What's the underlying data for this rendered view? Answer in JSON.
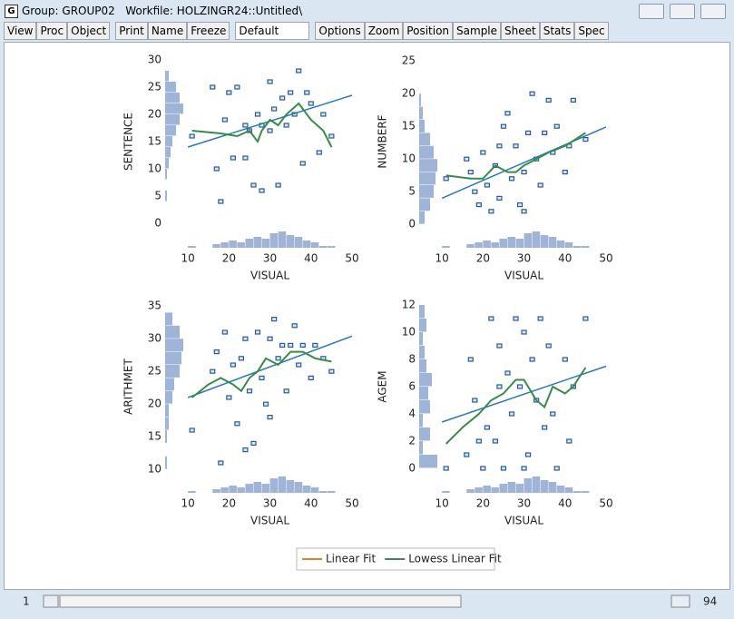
{
  "window": {
    "icon": "G",
    "title": "Group: GROUP02   Workfile: HOLZINGR24::Untitled\\"
  },
  "toolbar": {
    "group1": [
      "View",
      "Proc",
      "Object"
    ],
    "group2": [
      "Print",
      "Name",
      "Freeze"
    ],
    "dropdown": "Default",
    "group3": [
      "Options",
      "Zoom",
      "Position",
      "Sample",
      "Sheet",
      "Stats",
      "Spec"
    ]
  },
  "chart_data": [
    {
      "type": "scatter",
      "x_label": "VISUAL",
      "y_label": "SENTENCE",
      "xlim": [
        4,
        50
      ],
      "ylim": [
        -5,
        31
      ],
      "xticks": [
        10,
        20,
        30,
        40,
        50
      ],
      "yticks": [
        0,
        5,
        10,
        15,
        20,
        25,
        30
      ],
      "points": {
        "color": "#2a5a9a",
        "x": [
          11,
          16,
          17,
          18,
          19,
          20,
          21,
          22,
          24,
          25,
          26,
          27,
          28,
          28,
          30,
          31,
          32,
          33,
          34,
          35,
          36,
          37,
          38,
          39,
          40,
          42,
          43,
          45,
          30,
          24
        ],
        "values": [
          16,
          25,
          10,
          4,
          19,
          24,
          12,
          25,
          12,
          17,
          7,
          20,
          6,
          18,
          26,
          21,
          7,
          23,
          18,
          24,
          20,
          28,
          11,
          24,
          22,
          13,
          20,
          16,
          17,
          18
        ]
      },
      "linear_fit": {
        "color": "#2a78b8",
        "x": [
          10,
          50
        ],
        "values": [
          14,
          23.5
        ]
      },
      "lowess": {
        "color": "#3a8a4a",
        "x": [
          11,
          18,
          22,
          25,
          27,
          28,
          30,
          32,
          34,
          37,
          40,
          43,
          45
        ],
        "values": [
          17,
          16.5,
          16,
          17,
          15,
          17,
          19,
          18,
          20,
          22,
          19,
          17,
          14
        ]
      },
      "x_hist": {
        "color": "#9fb4d6",
        "bins": [
          10,
          12,
          14,
          16,
          18,
          20,
          22,
          24,
          26,
          28,
          30,
          32,
          34,
          36,
          38,
          40,
          42,
          44,
          46
        ],
        "counts": [
          1,
          0,
          0,
          2,
          3,
          4,
          3,
          5,
          6,
          5,
          8,
          9,
          7,
          6,
          4,
          3,
          1,
          1
        ]
      },
      "y_hist": {
        "color": "#9fb4d6",
        "bins": [
          4,
          6,
          8,
          10,
          12,
          14,
          16,
          18,
          20,
          22,
          24,
          26,
          28
        ],
        "counts": [
          1,
          0,
          1,
          2,
          3,
          4,
          6,
          8,
          10,
          8,
          6,
          2
        ]
      }
    },
    {
      "type": "scatter",
      "x_label": "VISUAL",
      "y_label": "NUMBERF",
      "xlim": [
        4,
        50
      ],
      "ylim": [
        -4,
        26
      ],
      "xticks": [
        10,
        20,
        30,
        40,
        50
      ],
      "yticks": [
        0,
        5,
        10,
        15,
        20,
        25
      ],
      "points": {
        "color": "#2a5a9a",
        "x": [
          11,
          16,
          17,
          18,
          19,
          20,
          21,
          22,
          23,
          24,
          25,
          26,
          27,
          28,
          29,
          30,
          31,
          32,
          33,
          34,
          35,
          36,
          37,
          38,
          40,
          41,
          42,
          45,
          30,
          24
        ],
        "values": [
          7,
          10,
          8,
          5,
          3,
          11,
          6,
          2,
          9,
          4,
          15,
          17,
          7,
          12,
          3,
          8,
          14,
          20,
          10,
          6,
          14,
          19,
          11,
          15,
          8,
          12,
          19,
          13,
          2,
          12
        ]
      },
      "linear_fit": {
        "color": "#2a78b8",
        "x": [
          10,
          50
        ],
        "values": [
          4,
          14.9
        ]
      },
      "lowess": {
        "color": "#3a8a4a",
        "x": [
          11,
          17,
          20,
          23,
          26,
          28,
          30,
          33,
          36,
          40,
          45
        ],
        "values": [
          7.5,
          7,
          7,
          9,
          8,
          8,
          9,
          10,
          11,
          12,
          14
        ]
      },
      "x_hist": {
        "color": "#9fb4d6",
        "bins": [
          10,
          12,
          14,
          16,
          18,
          20,
          22,
          24,
          26,
          28,
          30,
          32,
          34,
          36,
          38,
          40,
          42,
          44,
          46
        ],
        "counts": [
          1,
          0,
          0,
          2,
          3,
          4,
          3,
          5,
          6,
          5,
          8,
          9,
          7,
          6,
          4,
          3,
          1,
          1
        ]
      },
      "y_hist": {
        "color": "#9fb4d6",
        "bins": [
          0,
          2,
          4,
          6,
          8,
          10,
          12,
          14,
          16,
          18,
          20
        ],
        "counts": [
          3,
          6,
          8,
          9,
          10,
          8,
          6,
          3,
          2,
          1
        ]
      }
    },
    {
      "type": "scatter",
      "x_label": "VISUAL",
      "y_label": "ARITHMET",
      "xlim": [
        4,
        50
      ],
      "ylim": [
        6,
        36
      ],
      "xticks": [
        10,
        20,
        30,
        40,
        50
      ],
      "yticks": [
        10,
        15,
        20,
        25,
        30,
        35
      ],
      "points": {
        "color": "#2a5a9a",
        "x": [
          11,
          16,
          17,
          18,
          19,
          20,
          21,
          22,
          23,
          24,
          25,
          26,
          27,
          28,
          29,
          30,
          31,
          32,
          33,
          34,
          35,
          36,
          37,
          38,
          40,
          41,
          43,
          45,
          30,
          24
        ],
        "values": [
          16,
          25,
          28,
          11,
          31,
          21,
          26,
          17,
          27,
          13,
          22,
          14,
          31,
          24,
          20,
          30,
          33,
          27,
          29,
          22,
          29,
          32,
          26,
          29,
          24,
          29,
          27,
          25,
          18,
          30
        ]
      },
      "linear_fit": {
        "color": "#2a78b8",
        "x": [
          10,
          50
        ],
        "values": [
          21,
          30.4
        ]
      },
      "lowess": {
        "color": "#3a8a4a",
        "x": [
          11,
          15,
          18,
          21,
          23,
          25,
          27,
          29,
          32,
          35,
          38,
          41,
          45
        ],
        "values": [
          21,
          23,
          24,
          23,
          22,
          24,
          25,
          27,
          26,
          28,
          28,
          27,
          26.5
        ]
      },
      "x_hist": {
        "color": "#9fb4d6",
        "bins": [
          10,
          12,
          14,
          16,
          18,
          20,
          22,
          24,
          26,
          28,
          30,
          32,
          34,
          36,
          38,
          40,
          42,
          44,
          46
        ],
        "counts": [
          1,
          0,
          0,
          2,
          3,
          4,
          3,
          5,
          6,
          5,
          8,
          9,
          7,
          6,
          4,
          3,
          1,
          1
        ]
      },
      "y_hist": {
        "color": "#9fb4d6",
        "bins": [
          10,
          12,
          14,
          16,
          18,
          20,
          22,
          24,
          26,
          28,
          30,
          32,
          34
        ],
        "counts": [
          1,
          0,
          1,
          2,
          2,
          4,
          5,
          8,
          9,
          10,
          8,
          4
        ]
      }
    },
    {
      "type": "scatter",
      "x_label": "VISUAL",
      "y_label": "AGEM",
      "xlim": [
        4,
        50
      ],
      "ylim": [
        -2,
        12.4
      ],
      "xticks": [
        10,
        20,
        30,
        40,
        50
      ],
      "yticks": [
        0,
        2,
        4,
        6,
        8,
        10,
        12
      ],
      "points": {
        "color": "#2a5a9a",
        "x": [
          11,
          16,
          17,
          18,
          19,
          20,
          21,
          22,
          23,
          24,
          25,
          26,
          27,
          28,
          29,
          30,
          31,
          32,
          33,
          34,
          35,
          36,
          37,
          38,
          40,
          41,
          42,
          45,
          30,
          24
        ],
        "values": [
          0,
          1,
          8,
          5,
          2,
          0,
          3,
          11,
          2,
          9,
          0,
          7,
          4,
          11,
          6,
          10,
          1,
          8,
          5,
          11,
          3,
          9,
          4,
          0,
          8,
          2,
          6,
          11,
          0,
          6
        ]
      },
      "linear_fit": {
        "color": "#2a78b8",
        "x": [
          10,
          50
        ],
        "values": [
          3.4,
          7.5
        ]
      },
      "lowess": {
        "color": "#3a8a4a",
        "x": [
          11,
          15,
          19,
          22,
          25,
          28,
          30,
          33,
          35,
          37,
          40,
          42,
          45
        ],
        "values": [
          1.8,
          3,
          4,
          5,
          5.5,
          6.5,
          6.5,
          5,
          4.5,
          6,
          5.5,
          6,
          7.4
        ]
      },
      "x_hist": {
        "color": "#9fb4d6",
        "bins": [
          10,
          12,
          14,
          16,
          18,
          20,
          22,
          24,
          26,
          28,
          30,
          32,
          34,
          36,
          38,
          40,
          42,
          44,
          46
        ],
        "counts": [
          1,
          0,
          0,
          2,
          3,
          4,
          3,
          5,
          6,
          5,
          8,
          9,
          7,
          6,
          4,
          3,
          1,
          1
        ]
      },
      "y_hist": {
        "color": "#9fb4d6",
        "bins": [
          0,
          1,
          2,
          3,
          4,
          5,
          6,
          7,
          8,
          9,
          10,
          11,
          12
        ],
        "counts": [
          10,
          2,
          6,
          2,
          6,
          5,
          7,
          4,
          3,
          2,
          4,
          3
        ]
      }
    }
  ],
  "legend": {
    "entries": [
      {
        "name": "Linear Fit",
        "color": "#e08030"
      },
      {
        "name": "Lowess Linear Fit",
        "color": "#3a8a4a"
      }
    ]
  },
  "status": {
    "first": 1,
    "last": 94
  }
}
